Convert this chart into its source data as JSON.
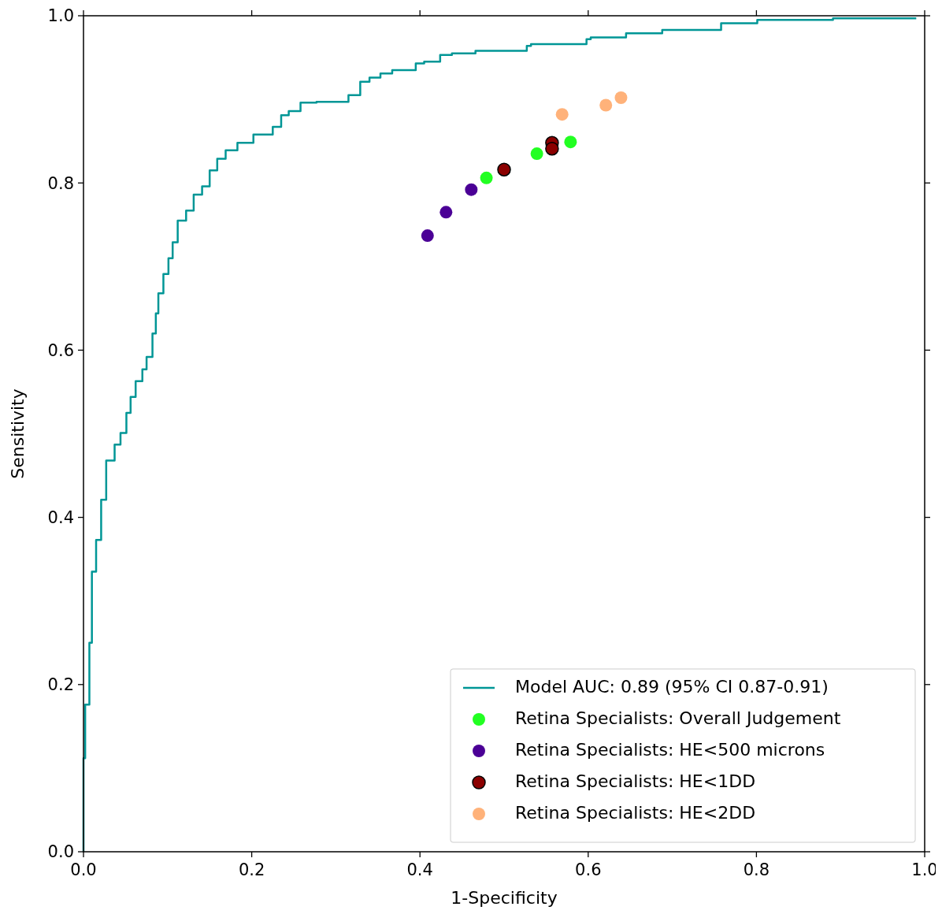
{
  "chart_data": {
    "type": "step",
    "xlabel": "1-Specificity",
    "ylabel": "Sensitivity",
    "xlim": [
      0,
      1
    ],
    "ylim": [
      0,
      1
    ],
    "xticks": [
      {
        "value": 0,
        "label": "0.0"
      },
      0.2,
      0.4,
      0.6,
      0.8,
      {
        "value": 1,
        "label": "1.0"
      }
    ],
    "yticks": [
      {
        "value": 0,
        "label": "0.0"
      },
      0.2,
      0.4,
      0.6,
      0.8,
      {
        "value": 1,
        "label": "1.0"
      }
    ],
    "grid": false,
    "legend": "bottom right",
    "series": [
      {
        "name": "Model AUC: 0.89 (95% CI 0.87-0.91)",
        "color": "#009696",
        "marker": "none",
        "x": [
          0,
          0.002,
          0.007,
          0.01,
          0.015,
          0.021,
          0.027,
          0.037,
          0.044,
          0.051,
          0.056,
          0.062,
          0.07,
          0.075,
          0.082,
          0.086,
          0.089,
          0.095,
          0.101,
          0.106,
          0.112,
          0.122,
          0.131,
          0.141,
          0.15,
          0.159,
          0.169,
          0.183,
          0.202,
          0.225,
          0.235,
          0.244,
          0.258,
          0.277,
          0.315,
          0.329,
          0.34,
          0.353,
          0.367,
          0.395,
          0.405,
          0.424,
          0.438,
          0.466,
          0.527,
          0.532,
          0.598,
          0.603,
          0.645,
          0.688,
          0.758,
          0.801,
          0.891,
          0.99
        ],
        "values": [
          0,
          0.112,
          0.176,
          0.25,
          0.335,
          0.373,
          0.421,
          0.468,
          0.487,
          0.501,
          0.525,
          0.544,
          0.563,
          0.577,
          0.592,
          0.62,
          0.644,
          0.668,
          0.691,
          0.71,
          0.729,
          0.755,
          0.767,
          0.786,
          0.796,
          0.815,
          0.829,
          0.839,
          0.848,
          0.858,
          0.867,
          0.881,
          0.886,
          0.896,
          0.897,
          0.905,
          0.921,
          0.926,
          0.931,
          0.935,
          0.943,
          0.945,
          0.953,
          0.955,
          0.958,
          0.964,
          0.966,
          0.972,
          0.974,
          0.979,
          0.983,
          0.991,
          0.995,
          0.997
        ]
      },
      {
        "name": "Retina Specialists: Overall Judgement",
        "type": "scatter",
        "color": "#22ff22",
        "marker": "circle",
        "x": [
          0.479,
          0.539,
          0.579
        ],
        "values": [
          0.806,
          0.835,
          0.849
        ]
      },
      {
        "name": "Retina Specialists: HE<500 microns",
        "type": "scatter",
        "color": "#4b0096",
        "marker": "circle",
        "x": [
          0.409,
          0.431,
          0.461
        ],
        "values": [
          0.737,
          0.765,
          0.792
        ]
      },
      {
        "name": "Retina Specialists: HE<1DD",
        "type": "scatter",
        "color": "#8b0000",
        "marker": "circle",
        "x": [
          0.5,
          0.557,
          0.557
        ],
        "values": [
          0.816,
          0.848,
          0.841
        ]
      },
      {
        "name": "Retina Specialists: HE<2DD",
        "type": "scatter",
        "color": "#ffb27a",
        "marker": "circle",
        "x": [
          0.569,
          0.621,
          0.639
        ],
        "values": [
          0.882,
          0.893,
          0.902
        ]
      }
    ]
  }
}
